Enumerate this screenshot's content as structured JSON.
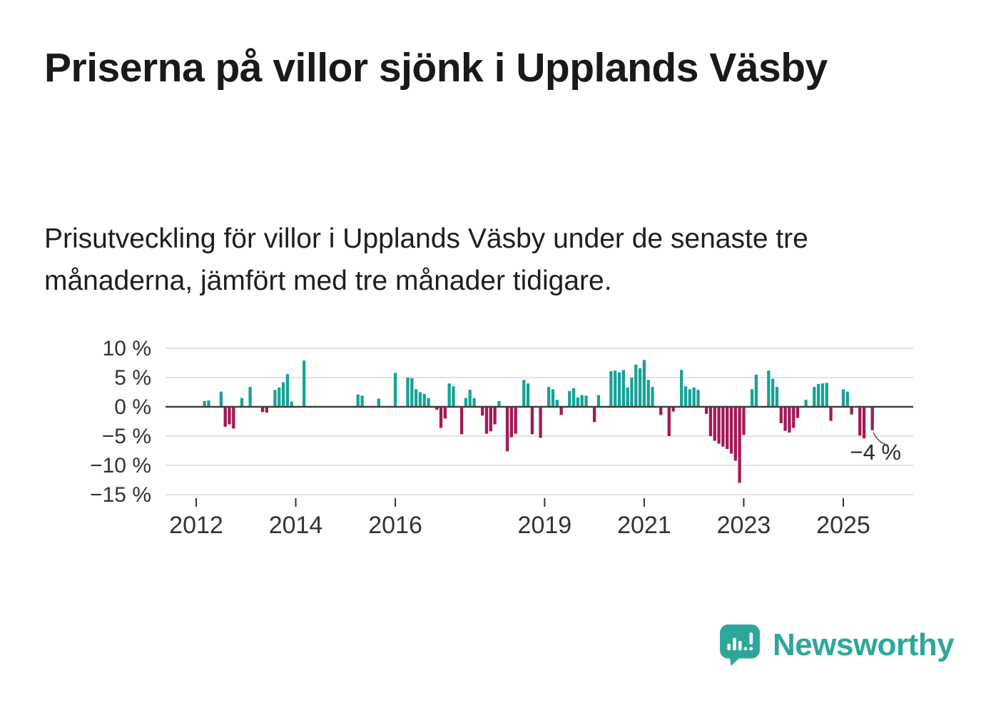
{
  "page": {
    "title": "Priserna på villor sjönk i Upplands Väsby",
    "subtitle": "Prisutveckling för villor i Upplands Väsby under de senaste tre månaderna, jämfört med tre månader tidigare."
  },
  "branding": {
    "logo_text": "Newsworthy",
    "logo_icon": "bar-chart-speech-bubble-icon"
  },
  "colors": {
    "positive": "#17a298",
    "negative": "#a31858",
    "grid": "#d9d9d9",
    "zero_line": "#3f3f3f",
    "axis_text": "#333333",
    "annotation_text": "#2b2b2b",
    "brand_teal": "#2ea79a"
  },
  "chart_data": {
    "type": "bar",
    "title": "Prisutveckling för villor i Upplands Väsby, rullande 3 månader",
    "frequency": "monthly",
    "x_start": "2012-01",
    "x_end": "2025-08",
    "unit": "%",
    "values": [
      0,
      0,
      1.0,
      1.1,
      0,
      0,
      2.6,
      -3.4,
      -3.0,
      -3.7,
      0,
      1.5,
      0,
      3.4,
      0,
      0,
      -0.9,
      -1.0,
      0,
      2.9,
      3.3,
      4.2,
      5.6,
      0.9,
      0,
      0,
      7.9,
      0,
      0,
      0,
      0,
      0,
      0,
      0,
      0,
      0,
      0,
      0,
      0,
      2.1,
      1.9,
      0,
      0,
      0,
      1.4,
      0,
      0,
      0,
      5.8,
      0,
      0,
      5.0,
      4.9,
      3.0,
      2.5,
      2.2,
      1.5,
      0,
      -0.5,
      -3.6,
      -2.0,
      4.0,
      3.5,
      0,
      -4.7,
      1.5,
      2.9,
      1.5,
      0,
      -1.5,
      -4.6,
      -4.2,
      -3.0,
      1.0,
      0,
      -7.6,
      -5.2,
      -4.6,
      0,
      4.6,
      4.0,
      -4.7,
      0,
      -5.3,
      0,
      3.4,
      3.0,
      1.2,
      -1.4,
      0,
      2.7,
      3.2,
      1.6,
      2.0,
      1.9,
      0,
      -2.6,
      2.0,
      0,
      0,
      6.1,
      6.2,
      5.9,
      6.3,
      3.3,
      5.0,
      7.2,
      6.6,
      8.0,
      4.6,
      3.4,
      0,
      -1.4,
      0,
      -5.0,
      -0.8,
      0,
      6.3,
      3.5,
      3.0,
      3.3,
      2.9,
      0,
      -1.2,
      -5.0,
      -5.8,
      -6.3,
      -6.8,
      -7.2,
      -8.0,
      -9.2,
      -13.0,
      -4.8,
      0,
      3.0,
      5.5,
      0,
      0,
      6.2,
      4.8,
      3.4,
      -2.8,
      -4.1,
      -4.4,
      -3.6,
      -1.9,
      0,
      1.2,
      0,
      3.4,
      3.9,
      4.0,
      4.1,
      -2.4,
      0,
      0,
      3.0,
      2.6,
      -1.3,
      0,
      -4.9,
      -5.4,
      0,
      -4.0
    ],
    "y_ticks": [
      "10 %",
      "5 %",
      "0 %",
      "−5 %",
      "−10 %",
      "−15 %"
    ],
    "y_tick_values": [
      10,
      5,
      0,
      -5,
      -10,
      -15
    ],
    "x_ticks": [
      "2012",
      "2014",
      "2016",
      "2019",
      "2021",
      "2023",
      "2025"
    ],
    "x_tick_years": [
      2012,
      2014,
      2016,
      2019,
      2021,
      2023,
      2025
    ],
    "ylim": [
      -16,
      11.2
    ],
    "grid": true,
    "legend": false,
    "annotation": {
      "text": "−4 %",
      "value": -4,
      "target": "last-bar"
    }
  }
}
